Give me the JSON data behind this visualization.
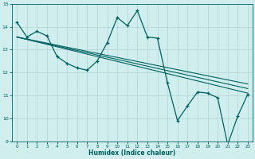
{
  "xlabel": "Humidex (Indice chaleur)",
  "x_values": [
    0,
    1,
    2,
    3,
    4,
    5,
    6,
    7,
    8,
    9,
    10,
    11,
    12,
    13,
    14,
    15,
    16,
    17,
    18,
    19,
    20,
    21,
    22,
    23
  ],
  "y_main": [
    14.2,
    13.55,
    13.8,
    13.6,
    12.7,
    12.4,
    12.2,
    12.1,
    12.5,
    13.3,
    14.4,
    14.05,
    14.7,
    13.55,
    13.5,
    11.55,
    9.9,
    10.55,
    11.15,
    11.1,
    10.9,
    8.85,
    10.1,
    11.05
  ],
  "trend_x_start": 0,
  "trend_x_end": 23,
  "trend1_y_start": 13.55,
  "trend1_y_end": 11.5,
  "trend2_y_start": 13.55,
  "trend2_y_end": 11.3,
  "trend3_y_start": 13.55,
  "trend3_y_end": 11.1,
  "line_color": "#006060",
  "bg_color": "#d0eeee",
  "grid_color": "#b8d8d8",
  "ylim": [
    9,
    15
  ],
  "xlim": [
    -0.5,
    23.5
  ],
  "yticks": [
    9,
    10,
    11,
    12,
    13,
    14,
    15
  ],
  "xticks": [
    0,
    1,
    2,
    3,
    4,
    5,
    6,
    7,
    8,
    9,
    10,
    11,
    12,
    13,
    14,
    15,
    16,
    17,
    18,
    19,
    20,
    21,
    22,
    23
  ]
}
